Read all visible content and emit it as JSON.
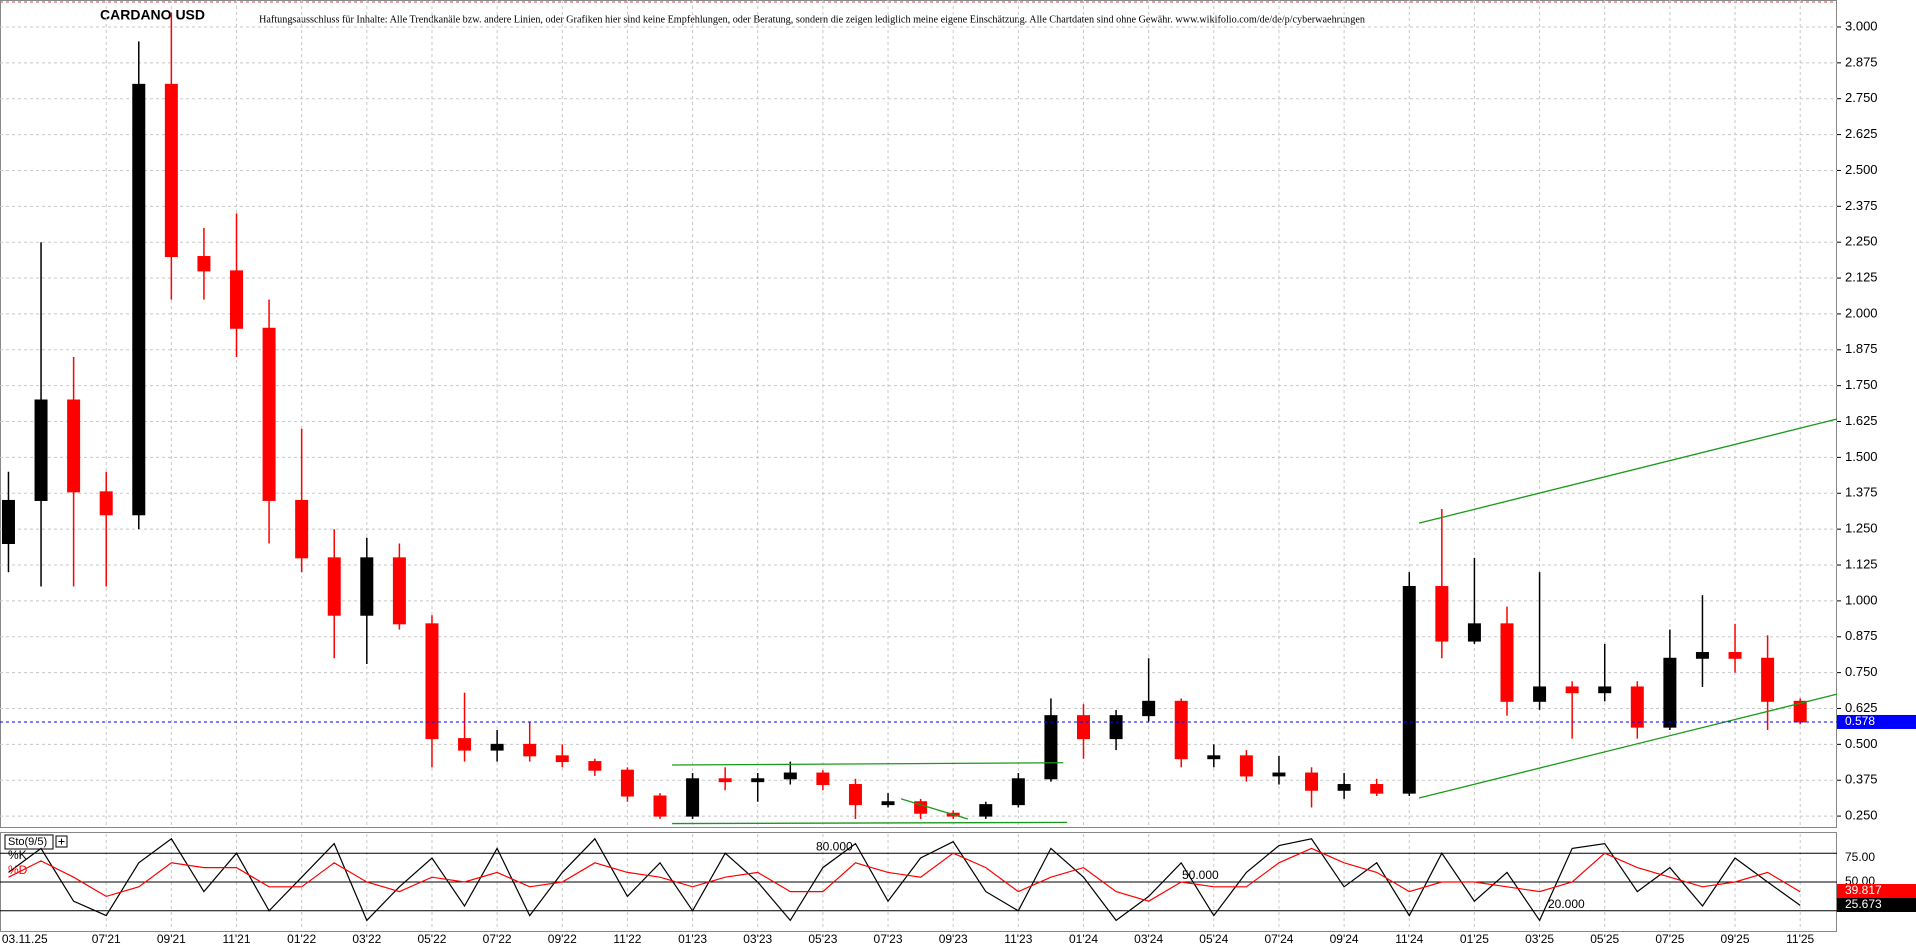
{
  "chart_data": [
    {
      "type": "candlestick",
      "title": "CARDANO USD",
      "subtitle": "Haftungsausschluss für Inhalte: Alle Trendkanäle bzw. andere Linien, oder Grafiken hier sind keine Empfehlungen, oder Beratung, sondern die zeigen lediglich meine eigene Einschätzung. Alle Chartdaten sind ohne Gewähr.  www.wikifolio.com/de/de/p/cyberwaehrungen",
      "x": [
        -3,
        -2,
        -1,
        0,
        1,
        2,
        3,
        4,
        5,
        6,
        7,
        8,
        9,
        10,
        11,
        12,
        13,
        14,
        15,
        16,
        17,
        18,
        19,
        20,
        21,
        22,
        23,
        24,
        25,
        26,
        27,
        28,
        29,
        30,
        31,
        32,
        33,
        34,
        35,
        36,
        37,
        38,
        39,
        40,
        41,
        42,
        43,
        44,
        45,
        46,
        47,
        48,
        49,
        50,
        51,
        52
      ],
      "open": [
        1.2,
        1.35,
        1.7,
        1.38,
        1.3,
        2.8,
        2.2,
        2.15,
        1.95,
        1.35,
        1.15,
        0.95,
        1.15,
        0.92,
        0.52,
        0.48,
        0.5,
        0.46,
        0.44,
        0.41,
        0.32,
        0.25,
        0.38,
        0.37,
        0.38,
        0.4,
        0.36,
        0.29,
        0.3,
        0.26,
        0.25,
        0.29,
        0.38,
        0.6,
        0.52,
        0.6,
        0.65,
        0.45,
        0.46,
        0.39,
        0.4,
        0.34,
        0.36,
        0.33,
        1.05,
        0.86,
        0.92,
        0.65,
        0.7,
        0.68,
        0.7,
        0.56,
        0.8,
        0.82,
        0.8,
        0.65
      ],
      "high": [
        1.45,
        2.25,
        1.85,
        1.45,
        2.95,
        3.05,
        2.3,
        2.35,
        2.05,
        1.6,
        1.25,
        1.22,
        1.2,
        0.95,
        0.68,
        0.55,
        0.58,
        0.5,
        0.45,
        0.42,
        0.33,
        0.4,
        0.42,
        0.4,
        0.44,
        0.41,
        0.38,
        0.33,
        0.31,
        0.27,
        0.3,
        0.4,
        0.66,
        0.64,
        0.62,
        0.8,
        0.66,
        0.5,
        0.48,
        0.46,
        0.42,
        0.4,
        0.38,
        1.1,
        1.32,
        1.15,
        0.98,
        1.1,
        0.72,
        0.85,
        0.72,
        0.9,
        1.02,
        0.92,
        0.88,
        0.66
      ],
      "low": [
        1.1,
        1.05,
        1.05,
        1.05,
        1.25,
        2.05,
        2.05,
        1.85,
        1.2,
        1.1,
        0.8,
        0.78,
        0.9,
        0.42,
        0.44,
        0.44,
        0.44,
        0.42,
        0.39,
        0.3,
        0.24,
        0.24,
        0.34,
        0.3,
        0.36,
        0.34,
        0.24,
        0.28,
        0.24,
        0.24,
        0.24,
        0.28,
        0.37,
        0.45,
        0.48,
        0.58,
        0.42,
        0.42,
        0.37,
        0.36,
        0.28,
        0.31,
        0.32,
        0.32,
        0.8,
        0.85,
        0.6,
        0.62,
        0.52,
        0.65,
        0.52,
        0.55,
        0.7,
        0.75,
        0.55,
        0.57
      ],
      "close": [
        1.35,
        1.7,
        1.38,
        1.3,
        2.8,
        2.2,
        2.15,
        1.95,
        1.35,
        1.15,
        0.95,
        1.15,
        0.92,
        0.52,
        0.48,
        0.5,
        0.46,
        0.44,
        0.41,
        0.32,
        0.25,
        0.38,
        0.37,
        0.38,
        0.4,
        0.36,
        0.29,
        0.3,
        0.26,
        0.25,
        0.29,
        0.38,
        0.6,
        0.52,
        0.6,
        0.65,
        0.45,
        0.46,
        0.39,
        0.4,
        0.34,
        0.36,
        0.33,
        1.05,
        0.86,
        0.92,
        0.65,
        0.7,
        0.68,
        0.7,
        0.56,
        0.8,
        0.82,
        0.8,
        0.65,
        0.578
      ],
      "up_color": "#000000",
      "down_color": "#ff0000",
      "last_price": 0.578,
      "last_price_color": "#0000ff",
      "xlim": [
        -3.26,
        53.13
      ],
      "xticks": [
        {
          "value": -2.5,
          "label": "03.11.25"
        },
        {
          "value": 0,
          "label": "07'21"
        },
        {
          "value": 2,
          "label": "09'21"
        },
        {
          "value": 4,
          "label": "11'21"
        },
        {
          "value": 6,
          "label": "01'22"
        },
        {
          "value": 8,
          "label": "03'22"
        },
        {
          "value": 10,
          "label": "05'22"
        },
        {
          "value": 12,
          "label": "07'22"
        },
        {
          "value": 14,
          "label": "09'22"
        },
        {
          "value": 16,
          "label": "11'22"
        },
        {
          "value": 18,
          "label": "01'23"
        },
        {
          "value": 20,
          "label": "03'23"
        },
        {
          "value": 22,
          "label": "05'23"
        },
        {
          "value": 24,
          "label": "07'23"
        },
        {
          "value": 26,
          "label": "09'23"
        },
        {
          "value": 28,
          "label": "11'23"
        },
        {
          "value": 30,
          "label": "01'24"
        },
        {
          "value": 32,
          "label": "03'24"
        },
        {
          "value": 34,
          "label": "05'24"
        },
        {
          "value": 36,
          "label": "07'24"
        },
        {
          "value": 38,
          "label": "09'24"
        },
        {
          "value": 40,
          "label": "11'24"
        },
        {
          "value": 42,
          "label": "01'25"
        },
        {
          "value": 44,
          "label": "03'25"
        },
        {
          "value": 46,
          "label": "05'25"
        },
        {
          "value": 48,
          "label": "07'25"
        },
        {
          "value": 50,
          "label": "09'25"
        },
        {
          "value": 52,
          "label": "11'25"
        }
      ],
      "ylim": [
        0.212,
        3.094
      ],
      "yticks": [
        {
          "value": 0.25,
          "label": "0.250"
        },
        {
          "value": 0.375,
          "label": "0.375"
        },
        {
          "value": 0.5,
          "label": "0.500"
        },
        {
          "value": 0.625,
          "label": "0.625"
        },
        {
          "value": 0.75,
          "label": "0.750"
        },
        {
          "value": 0.875,
          "label": "0.875"
        },
        {
          "value": 1,
          "label": "1.000"
        },
        {
          "value": 1.125,
          "label": "1.125"
        },
        {
          "value": 1.25,
          "label": "1.250"
        },
        {
          "value": 1.375,
          "label": "1.375"
        },
        {
          "value": 1.5,
          "label": "1.500"
        },
        {
          "value": 1.625,
          "label": "1.625"
        },
        {
          "value": 1.75,
          "label": "1.750"
        },
        {
          "value": 1.875,
          "label": "1.875"
        },
        {
          "value": 2,
          "label": "2.000"
        },
        {
          "value": 2.125,
          "label": "2.125"
        },
        {
          "value": 2.25,
          "label": "2.250"
        },
        {
          "value": 2.375,
          "label": "2.375"
        },
        {
          "value": 2.5,
          "label": "2.500"
        },
        {
          "value": 2.625,
          "label": "2.625"
        },
        {
          "value": 2.75,
          "label": "2.750"
        },
        {
          "value": 2.875,
          "label": "2.875"
        },
        {
          "value": 3,
          "label": "3.000"
        }
      ],
      "grid": true,
      "trendline_color": "#1a9a1a",
      "trendlines": [
        {
          "x": [
            40.3,
            53.13
          ],
          "y": [
            1.271,
            1.634
          ]
        },
        {
          "x": [
            40.3,
            53.13
          ],
          "y": [
            0.313,
            0.675
          ]
        },
        {
          "x": [
            17.37,
            29.38
          ],
          "y": [
            0.428,
            0.436
          ]
        },
        {
          "x": [
            17.37,
            29.5
          ],
          "y": [
            0.224,
            0.228
          ]
        },
        {
          "x": [
            24.4,
            26.45
          ],
          "y": [
            0.31,
            0.24
          ]
        }
      ]
    },
    {
      "type": "line",
      "title": "Sto(9/5)",
      "x": [
        -3,
        -2,
        -1,
        0,
        1,
        2,
        3,
        4,
        5,
        6,
        7,
        8,
        9,
        10,
        11,
        12,
        13,
        14,
        15,
        16,
        17,
        18,
        19,
        20,
        21,
        22,
        23,
        24,
        25,
        26,
        27,
        28,
        29,
        30,
        31,
        32,
        33,
        34,
        35,
        36,
        37,
        38,
        39,
        40,
        41,
        42,
        43,
        44,
        45,
        46,
        47,
        48,
        49,
        50,
        51,
        52
      ],
      "series": [
        {
          "name": "%K",
          "color": "#000000",
          "values": [
            60,
            85,
            30,
            15,
            70,
            95,
            40,
            80,
            20,
            55,
            90,
            10,
            45,
            75,
            25,
            85,
            15,
            60,
            95,
            35,
            70,
            20,
            80,
            50,
            10,
            65,
            90,
            30,
            75,
            92,
            40,
            20,
            85,
            55,
            10,
            35,
            70,
            15,
            60,
            88,
            95,
            45,
            70,
            15,
            80,
            30,
            60,
            10,
            85,
            90,
            40,
            65,
            25,
            75,
            50,
            25.673
          ]
        },
        {
          "name": "%D",
          "color": "#ff0000",
          "values": [
            55,
            72,
            55,
            35,
            45,
            70,
            65,
            65,
            45,
            45,
            70,
            50,
            40,
            55,
            50,
            60,
            45,
            50,
            70,
            60,
            55,
            45,
            55,
            60,
            40,
            40,
            70,
            60,
            55,
            80,
            65,
            40,
            55,
            65,
            40,
            30,
            50,
            45,
            45,
            70,
            85,
            70,
            60,
            40,
            50,
            50,
            45,
            40,
            50,
            80,
            65,
            55,
            45,
            50,
            60,
            39.817
          ]
        }
      ],
      "ylim": [
        0,
        100
      ],
      "yticks": [
        {
          "value": 75,
          "label": "75.00"
        },
        {
          "value": 50,
          "label": "50.00"
        }
      ],
      "levels": [
        {
          "value": 80,
          "label": "80.000"
        },
        {
          "value": 50,
          "label": "50.000"
        },
        {
          "value": 20,
          "label": "20.000"
        }
      ]
    }
  ]
}
